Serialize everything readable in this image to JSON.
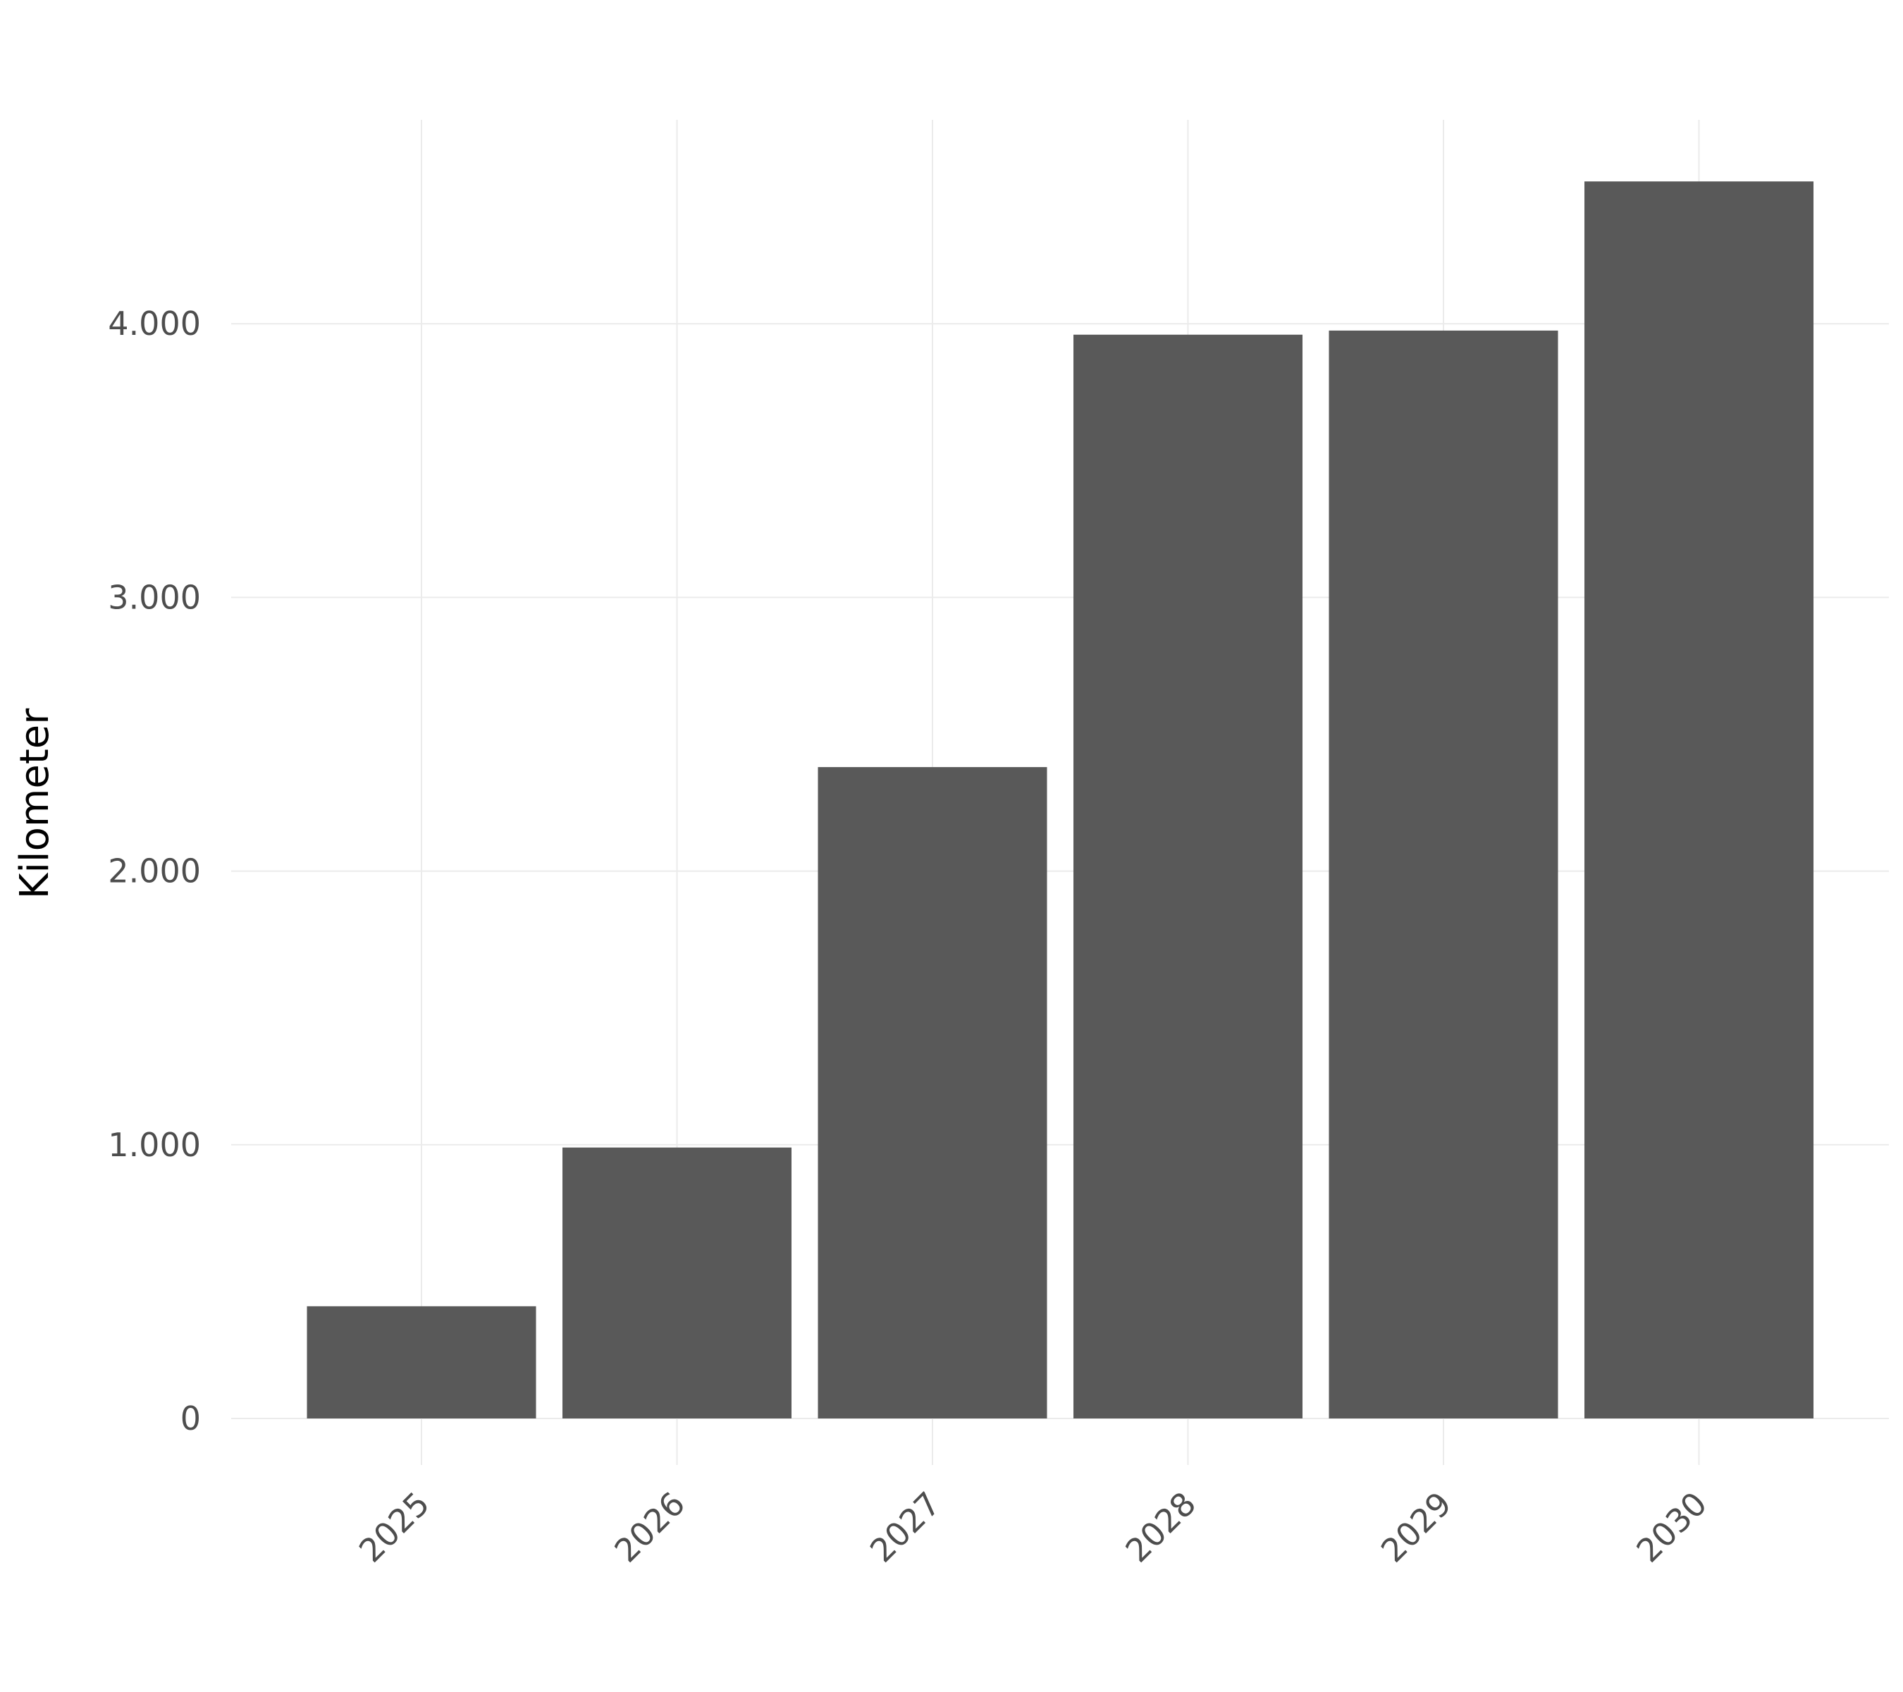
{
  "chart_data": {
    "type": "bar",
    "title": "",
    "xlabel": "",
    "ylabel": "Kilometer",
    "categories": [
      "2025",
      "2026",
      "2027",
      "2028",
      "2029",
      "2030"
    ],
    "values": [
      410,
      990,
      2380,
      3960,
      3975,
      4520
    ],
    "ylim": [
      0,
      4750
    ],
    "y_ticks": [
      0,
      1000,
      2000,
      3000,
      4000
    ],
    "y_tick_labels": [
      "0",
      "1.000",
      "2.000",
      "3.000",
      "4.000"
    ],
    "grid": true,
    "x_tick_rotation": "45deg",
    "bar_color": "#595959",
    "grid_color": "#ebebeb",
    "tick_label_color": "#4d4d4d"
  }
}
